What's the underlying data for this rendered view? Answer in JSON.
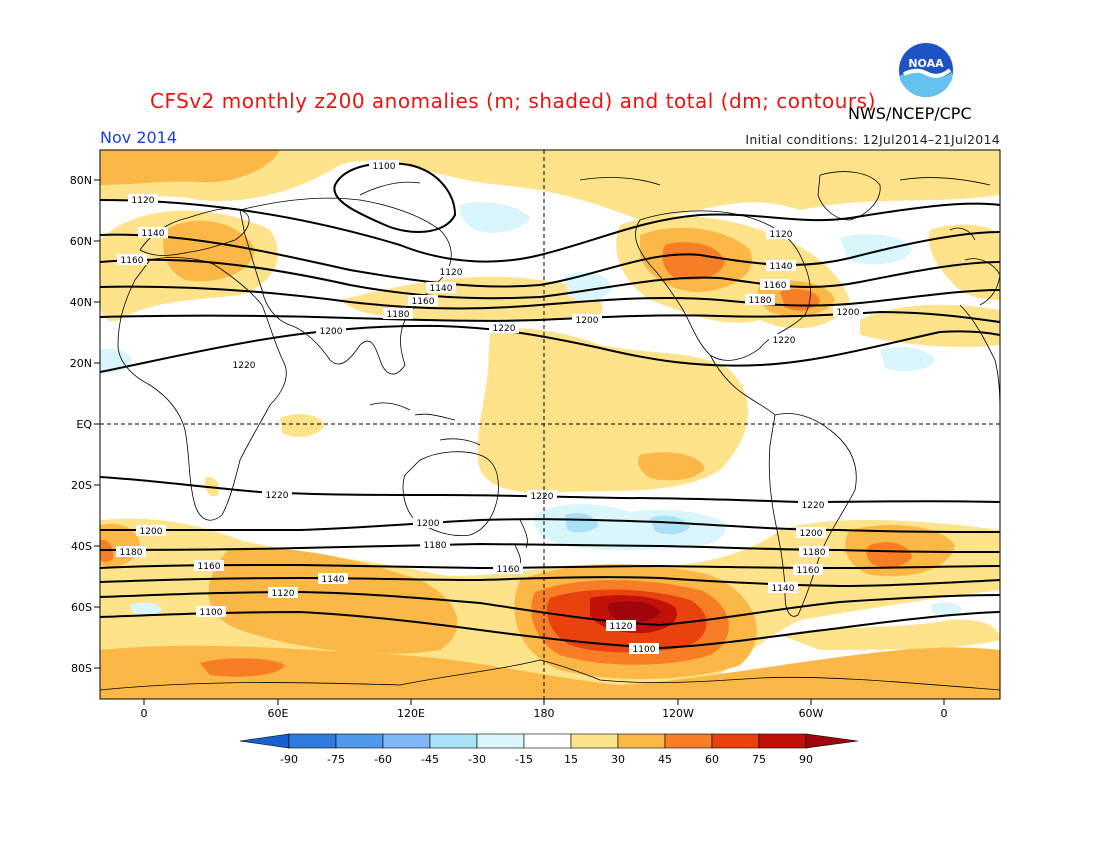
{
  "header": {
    "title": "CFSv2 monthly z200 anomalies (m; shaded) and total (dm; contours)",
    "agency": "NWS/NCEP/CPC",
    "month": "Nov 2014",
    "initial_conditions": "Initial conditions: 12Jul2014–21Jul2014"
  },
  "logo": {
    "icon": "noaa-logo-icon",
    "text": "NOAA"
  },
  "map": {
    "projection": "cylindrical",
    "lat_labels": [
      "80N",
      "60N",
      "40N",
      "20N",
      "EQ",
      "20S",
      "40S",
      "60S",
      "80S"
    ],
    "lon_labels": [
      "0",
      "60E",
      "120E",
      "180",
      "120W",
      "60W",
      "0"
    ],
    "contour_labels": [
      "1100",
      "1120",
      "1140",
      "1160",
      "1180",
      "1200",
      "1220"
    ],
    "reference_lines": [
      "EQ",
      "180"
    ]
  },
  "colorbar": {
    "labels": [
      "-90",
      "-75",
      "-60",
      "-45",
      "-30",
      "-15",
      "15",
      "30",
      "45",
      "60",
      "75",
      "90"
    ],
    "colors": [
      "#1a5fd0",
      "#2f7ce0",
      "#4e99ec",
      "#7db7f5",
      "#a9e2f7",
      "#d8f6fb",
      "#ffffff",
      "#fee38a",
      "#fcb847",
      "#f77e27",
      "#e9420d",
      "#c4100b",
      "#a0060b"
    ]
  }
}
